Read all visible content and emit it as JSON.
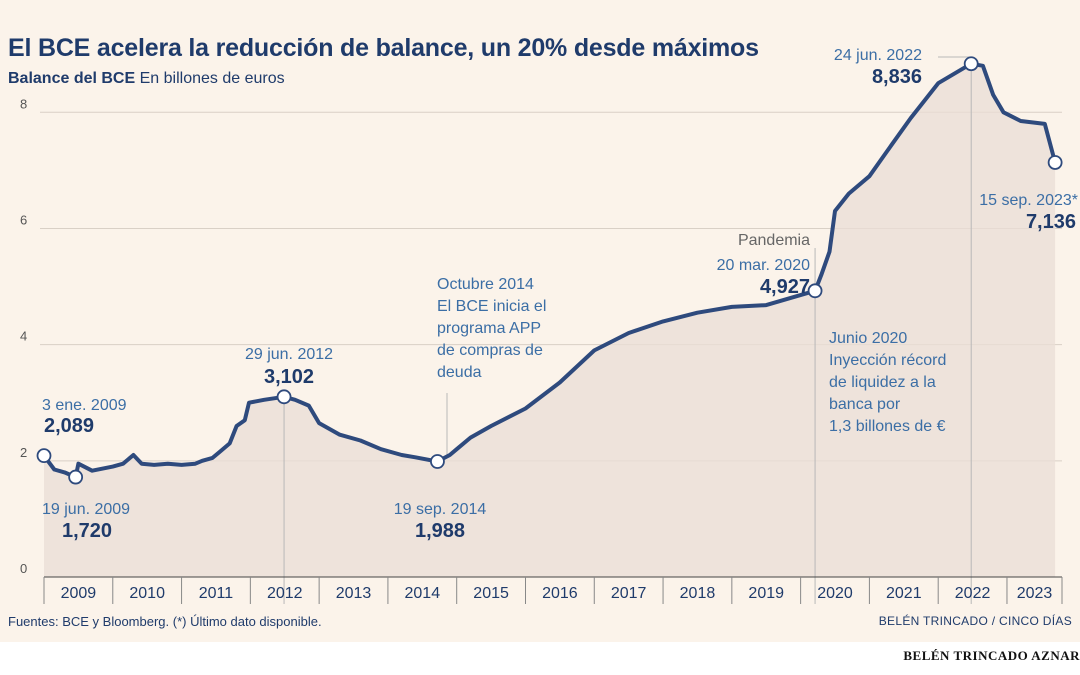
{
  "header": {
    "title": "El BCE acelera la reducción de balance, un 20% desde máximos",
    "subtitle_bold": "Balance del BCE",
    "subtitle_rest": "En billones de euros"
  },
  "footer": {
    "sources": "Fuentes: BCE y Bloomberg. (*) Último dato disponible.",
    "author": "BELÉN TRINCADO / CINCO DÍAS",
    "caption": "BELÉN TRINCADO AZNAR"
  },
  "chart_data": {
    "type": "line",
    "x_axis": {
      "min": 2009.0,
      "max": 2023.8,
      "ticks": [
        {
          "label": "2009",
          "x": 2009
        },
        {
          "label": "2010",
          "x": 2010
        },
        {
          "label": "2011",
          "x": 2011
        },
        {
          "label": "2012",
          "x": 2012
        },
        {
          "label": "2013",
          "x": 2013
        },
        {
          "label": "2014",
          "x": 2014
        },
        {
          "label": "2015",
          "x": 2015
        },
        {
          "label": "2016",
          "x": 2016
        },
        {
          "label": "2017",
          "x": 2017
        },
        {
          "label": "2018",
          "x": 2018
        },
        {
          "label": "2019",
          "x": 2019
        },
        {
          "label": "2020",
          "x": 2020
        },
        {
          "label": "2021",
          "x": 2021
        },
        {
          "label": "2022",
          "x": 2022
        },
        {
          "label": "2023",
          "x": 2023
        }
      ]
    },
    "y_axis": {
      "min": 0,
      "max": 8.9,
      "ticks": [
        "0",
        "2",
        "4",
        "6",
        "8"
      ]
    },
    "colors": {
      "line": "#2e4a7d",
      "area": "#e9ddd6",
      "guide": "#b8b8b8"
    },
    "series": [
      {
        "points": [
          [
            2009.0,
            2.089
          ],
          [
            2009.15,
            1.85
          ],
          [
            2009.3,
            1.8
          ],
          [
            2009.46,
            1.72
          ],
          [
            2009.5,
            1.95
          ],
          [
            2009.7,
            1.83
          ],
          [
            2010.0,
            1.9
          ],
          [
            2010.15,
            1.95
          ],
          [
            2010.3,
            2.1
          ],
          [
            2010.42,
            1.95
          ],
          [
            2010.6,
            1.93
          ],
          [
            2010.8,
            1.95
          ],
          [
            2011.0,
            1.93
          ],
          [
            2011.2,
            1.95
          ],
          [
            2011.3,
            2.0
          ],
          [
            2011.45,
            2.05
          ],
          [
            2011.55,
            2.15
          ],
          [
            2011.7,
            2.3
          ],
          [
            2011.8,
            2.6
          ],
          [
            2011.92,
            2.7
          ],
          [
            2011.98,
            3.0
          ],
          [
            2012.2,
            3.05
          ],
          [
            2012.49,
            3.102
          ],
          [
            2012.65,
            3.05
          ],
          [
            2012.85,
            2.95
          ],
          [
            2013.0,
            2.65
          ],
          [
            2013.3,
            2.45
          ],
          [
            2013.6,
            2.35
          ],
          [
            2013.9,
            2.2
          ],
          [
            2014.2,
            2.1
          ],
          [
            2014.4,
            2.06
          ],
          [
            2014.72,
            1.988
          ],
          [
            2014.9,
            2.1
          ],
          [
            2015.0,
            2.2
          ],
          [
            2015.2,
            2.4
          ],
          [
            2015.5,
            2.6
          ],
          [
            2016.0,
            2.9
          ],
          [
            2016.5,
            3.35
          ],
          [
            2017.0,
            3.9
          ],
          [
            2017.5,
            4.2
          ],
          [
            2018.0,
            4.4
          ],
          [
            2018.5,
            4.55
          ],
          [
            2019.0,
            4.65
          ],
          [
            2019.5,
            4.68
          ],
          [
            2020.21,
            4.927
          ],
          [
            2020.3,
            5.2
          ],
          [
            2020.42,
            5.6
          ],
          [
            2020.5,
            6.3
          ],
          [
            2020.7,
            6.6
          ],
          [
            2021.0,
            6.9
          ],
          [
            2021.3,
            7.4
          ],
          [
            2021.6,
            7.9
          ],
          [
            2022.0,
            8.5
          ],
          [
            2022.48,
            8.836
          ],
          [
            2022.65,
            8.8
          ],
          [
            2022.8,
            8.3
          ],
          [
            2022.95,
            8.0
          ],
          [
            2023.2,
            7.85
          ],
          [
            2023.55,
            7.8
          ],
          [
            2023.7,
            7.136
          ]
        ]
      }
    ],
    "annotations": [
      {
        "date": "3 ene. 2009",
        "value": "2,089",
        "x": 2009.0,
        "y": 2.089
      },
      {
        "date": "19 jun. 2009",
        "value": "1,720",
        "x": 2009.46,
        "y": 1.72
      },
      {
        "date": "29 jun. 2012",
        "value": "3,102",
        "x": 2012.49,
        "y": 3.102
      },
      {
        "date": "19 sep. 2014",
        "value": "1,988",
        "x": 2014.72,
        "y": 1.988
      },
      {
        "label": "Pandemia",
        "date": "20 mar. 2020",
        "value": "4,927",
        "x": 2020.21,
        "y": 4.927
      },
      {
        "date": "24 jun. 2022",
        "value": "8,836",
        "x": 2022.48,
        "y": 8.836
      },
      {
        "date": "15 sep. 2023*",
        "value": "7,136",
        "x": 2023.7,
        "y": 7.136
      }
    ],
    "notes": [
      {
        "lines": [
          "Octubre 2014",
          "El BCE inicia el",
          "programa APP",
          "de compras de",
          "deuda"
        ]
      },
      {
        "lines": [
          "Junio 2020",
          "Inyección récord",
          "de liquidez a la",
          "banca por",
          "1,3 billones de €"
        ]
      }
    ]
  }
}
